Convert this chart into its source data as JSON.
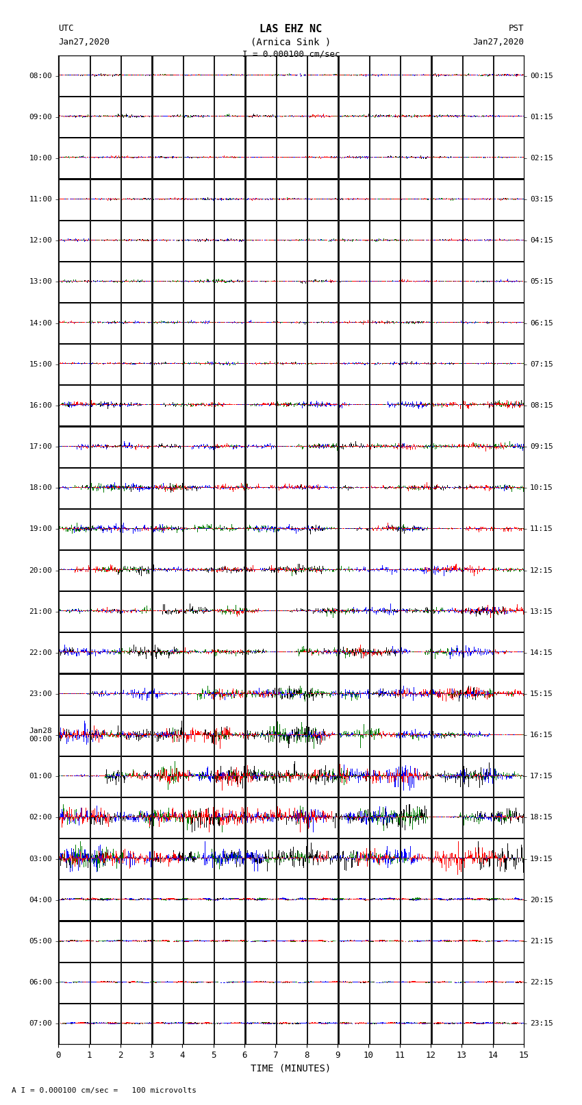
{
  "title_line1": "LAS EHZ NC",
  "title_line2": "(Arnica Sink )",
  "scale_text": "I = 0.000100 cm/sec",
  "left_label": "UTC",
  "left_date": "Jan27,2020",
  "right_label": "PST",
  "right_date": "Jan27,2020",
  "bottom_label": "TIME (MINUTES)",
  "bottom_note": "A I = 0.000100 cm/sec =   100 microvolts",
  "utc_times": [
    "08:00",
    "09:00",
    "10:00",
    "11:00",
    "12:00",
    "13:00",
    "14:00",
    "15:00",
    "16:00",
    "17:00",
    "18:00",
    "19:00",
    "20:00",
    "21:00",
    "22:00",
    "23:00",
    "Jan28\n00:00",
    "01:00",
    "02:00",
    "03:00",
    "04:00",
    "05:00",
    "06:00",
    "07:00"
  ],
  "pst_times": [
    "00:15",
    "01:15",
    "02:15",
    "03:15",
    "04:15",
    "05:15",
    "06:15",
    "07:15",
    "08:15",
    "09:15",
    "10:15",
    "11:15",
    "12:15",
    "13:15",
    "14:15",
    "15:15",
    "16:15",
    "17:15",
    "18:15",
    "19:15",
    "20:15",
    "21:15",
    "22:15",
    "23:15"
  ],
  "x_ticks": [
    0,
    1,
    2,
    3,
    4,
    5,
    6,
    7,
    8,
    9,
    10,
    11,
    12,
    13,
    14,
    15
  ],
  "fig_width": 8.5,
  "fig_height": 16.13,
  "bg_color": "#ffffff",
  "plot_bg": "#ffffff",
  "n_rows": 24,
  "row_colors": [
    [
      "red",
      "blue",
      "green",
      "black"
    ],
    [
      "red",
      "blue",
      "green",
      "black"
    ],
    [
      "red",
      "blue",
      "green",
      "black"
    ],
    [
      "red",
      "blue",
      "green",
      "black"
    ],
    [
      "red",
      "blue",
      "green",
      "black"
    ],
    [
      "red",
      "blue",
      "green",
      "black"
    ],
    [
      "red",
      "blue",
      "green",
      "black"
    ],
    [
      "red",
      "blue",
      "green",
      "black"
    ],
    [
      "red",
      "blue",
      "green",
      "black"
    ],
    [
      "red",
      "blue",
      "green",
      "black"
    ],
    [
      "red",
      "blue",
      "green",
      "black"
    ],
    [
      "red",
      "blue",
      "green",
      "black"
    ],
    [
      "red",
      "blue",
      "green",
      "black"
    ],
    [
      "red",
      "blue",
      "green",
      "black"
    ],
    [
      "red",
      "blue",
      "green",
      "black"
    ],
    [
      "red",
      "blue",
      "green",
      "black"
    ],
    [
      "red",
      "blue",
      "green",
      "black"
    ],
    [
      "red",
      "blue",
      "green",
      "black"
    ],
    [
      "red",
      "blue",
      "green",
      "black"
    ],
    [
      "red",
      "blue",
      "green",
      "black"
    ],
    [
      "red",
      "blue",
      "green",
      "black"
    ],
    [
      "red",
      "blue",
      "green",
      "black"
    ],
    [
      "red",
      "blue",
      "green",
      "black"
    ],
    [
      "red",
      "blue",
      "green",
      "black"
    ]
  ],
  "amplitude_profile": [
    0.3,
    0.35,
    0.3,
    0.3,
    0.32,
    0.35,
    0.35,
    0.38,
    0.4,
    0.42,
    0.45,
    0.5,
    0.55,
    0.6,
    0.65,
    0.7,
    0.75,
    0.8,
    0.85,
    0.9,
    0.5,
    0.4,
    0.35,
    0.4
  ]
}
